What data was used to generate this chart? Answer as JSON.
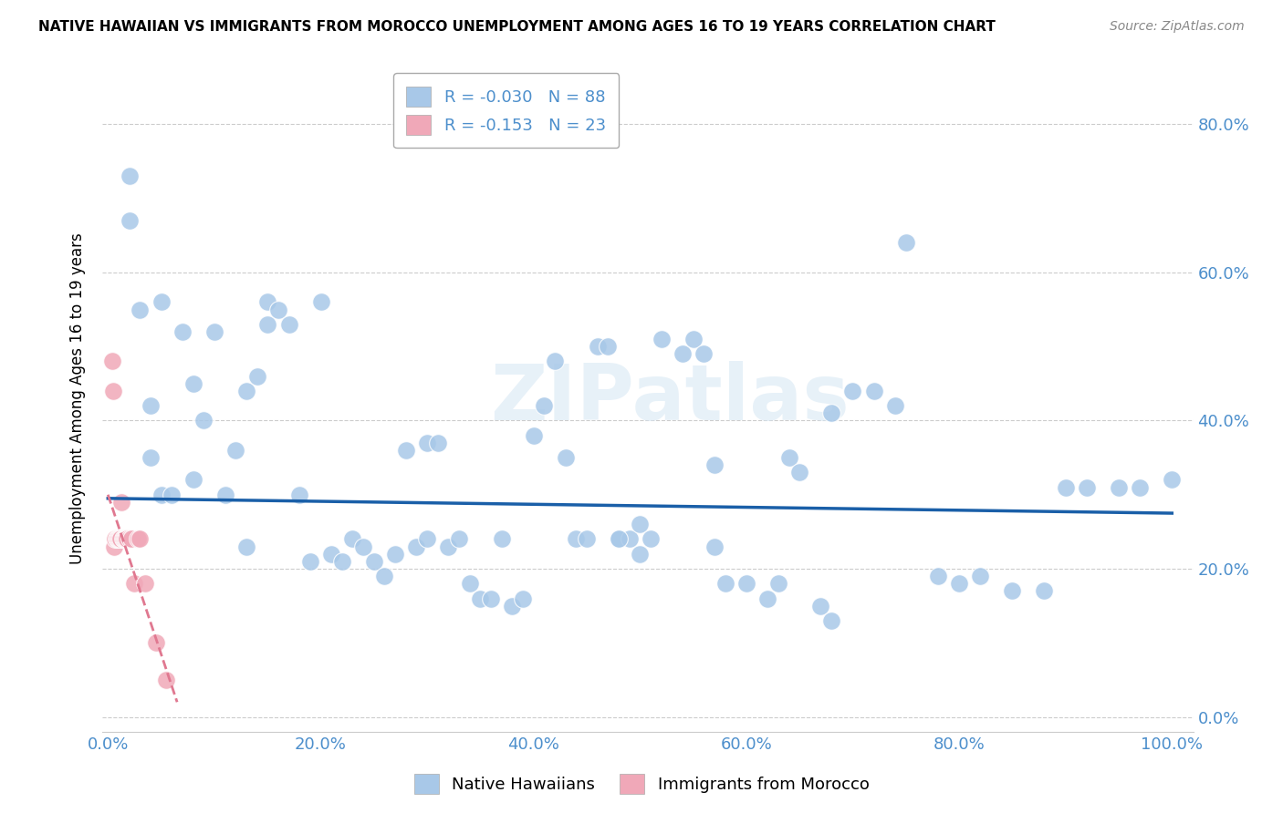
{
  "title": "NATIVE HAWAIIAN VS IMMIGRANTS FROM MOROCCO UNEMPLOYMENT AMONG AGES 16 TO 19 YEARS CORRELATION CHART",
  "source": "Source: ZipAtlas.com",
  "ylabel": "Unemployment Among Ages 16 to 19 years",
  "ytick_color": "#4d8fcc",
  "xtick_color": "#4d8fcc",
  "background_color": "#ffffff",
  "watermark": "ZIPatlas",
  "blue_R": -0.03,
  "blue_N": 88,
  "pink_R": -0.153,
  "pink_N": 23,
  "blue_color": "#a8c8e8",
  "pink_color": "#f0a8b8",
  "blue_line_color": "#1a5fa8",
  "pink_line_color": "#e07890",
  "grid_color": "#cccccc",
  "blue_scatter_x": [
    0.02,
    0.02,
    0.03,
    0.04,
    0.04,
    0.05,
    0.05,
    0.06,
    0.07,
    0.08,
    0.08,
    0.09,
    0.1,
    0.11,
    0.12,
    0.13,
    0.13,
    0.14,
    0.15,
    0.15,
    0.16,
    0.17,
    0.18,
    0.19,
    0.2,
    0.21,
    0.22,
    0.23,
    0.24,
    0.25,
    0.26,
    0.27,
    0.28,
    0.29,
    0.3,
    0.3,
    0.31,
    0.32,
    0.33,
    0.34,
    0.35,
    0.36,
    0.37,
    0.38,
    0.39,
    0.4,
    0.41,
    0.42,
    0.43,
    0.44,
    0.45,
    0.46,
    0.47,
    0.48,
    0.49,
    0.5,
    0.51,
    0.52,
    0.54,
    0.55,
    0.56,
    0.57,
    0.58,
    0.6,
    0.62,
    0.63,
    0.64,
    0.65,
    0.68,
    0.7,
    0.72,
    0.74,
    0.75,
    0.78,
    0.8,
    0.82,
    0.85,
    0.88,
    0.9,
    0.92,
    0.95,
    0.97,
    1.0,
    0.48,
    0.5,
    0.57,
    0.67,
    0.68
  ],
  "blue_scatter_y": [
    0.73,
    0.67,
    0.55,
    0.42,
    0.35,
    0.56,
    0.3,
    0.3,
    0.52,
    0.45,
    0.32,
    0.4,
    0.52,
    0.3,
    0.36,
    0.23,
    0.44,
    0.46,
    0.56,
    0.53,
    0.55,
    0.53,
    0.3,
    0.21,
    0.56,
    0.22,
    0.21,
    0.24,
    0.23,
    0.21,
    0.19,
    0.22,
    0.36,
    0.23,
    0.37,
    0.24,
    0.37,
    0.23,
    0.24,
    0.18,
    0.16,
    0.16,
    0.24,
    0.15,
    0.16,
    0.38,
    0.42,
    0.48,
    0.35,
    0.24,
    0.24,
    0.5,
    0.5,
    0.24,
    0.24,
    0.26,
    0.24,
    0.51,
    0.49,
    0.51,
    0.49,
    0.34,
    0.18,
    0.18,
    0.16,
    0.18,
    0.35,
    0.33,
    0.41,
    0.44,
    0.44,
    0.42,
    0.64,
    0.19,
    0.18,
    0.19,
    0.17,
    0.17,
    0.31,
    0.31,
    0.31,
    0.31,
    0.32,
    0.24,
    0.22,
    0.23,
    0.15,
    0.13
  ],
  "pink_scatter_x": [
    0.004,
    0.005,
    0.006,
    0.007,
    0.008,
    0.009,
    0.01,
    0.011,
    0.012,
    0.013,
    0.014,
    0.015,
    0.016,
    0.017,
    0.018,
    0.02,
    0.022,
    0.025,
    0.028,
    0.03,
    0.035,
    0.045,
    0.055
  ],
  "pink_scatter_y": [
    0.48,
    0.44,
    0.23,
    0.24,
    0.24,
    0.24,
    0.24,
    0.24,
    0.24,
    0.29,
    0.24,
    0.24,
    0.24,
    0.24,
    0.24,
    0.24,
    0.24,
    0.18,
    0.24,
    0.24,
    0.18,
    0.1,
    0.05
  ],
  "blue_line_x0": 0.0,
  "blue_line_x1": 1.0,
  "blue_line_y0": 0.295,
  "blue_line_y1": 0.275,
  "pink_line_x0": 0.0,
  "pink_line_x1": 0.065,
  "pink_line_y0": 0.3,
  "pink_line_y1": 0.02,
  "xlim_min": -0.005,
  "xlim_max": 1.02,
  "ylim_min": -0.02,
  "ylim_max": 0.88,
  "xtick_vals": [
    0.0,
    0.2,
    0.4,
    0.6,
    0.8,
    1.0
  ],
  "ytick_vals": [
    0.0,
    0.2,
    0.4,
    0.6,
    0.8
  ],
  "title_fontsize": 11,
  "source_fontsize": 10,
  "tick_fontsize": 13,
  "ylabel_fontsize": 12,
  "legend_fontsize": 13
}
